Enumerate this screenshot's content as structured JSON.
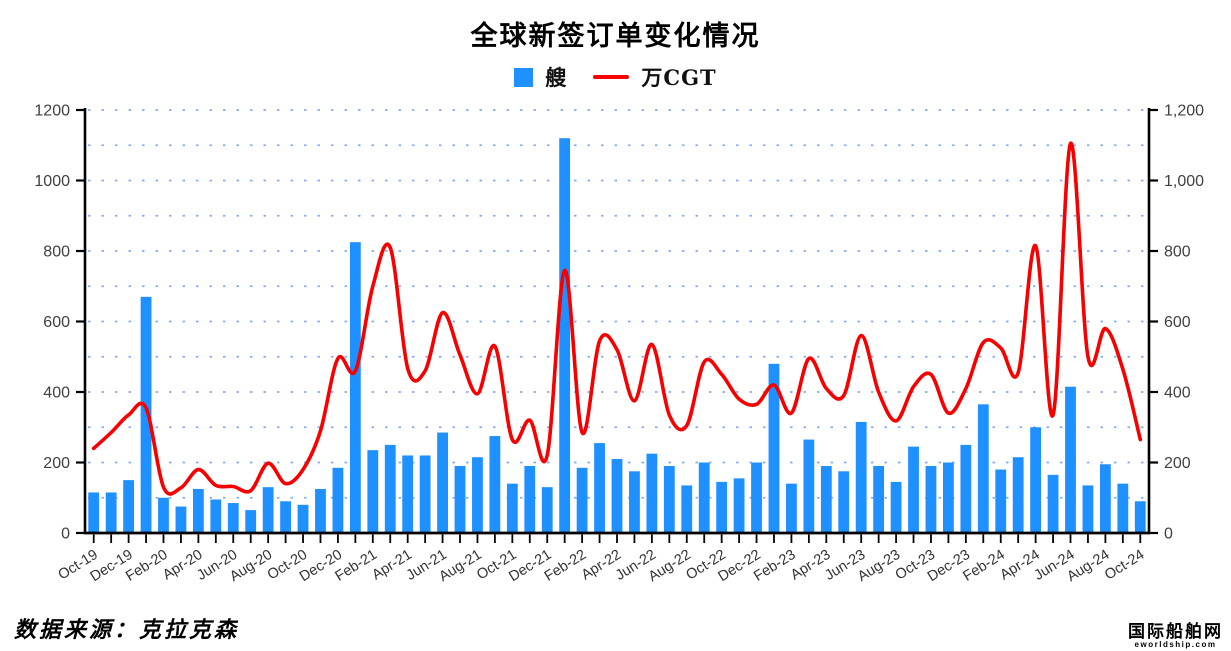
{
  "title": "全球新签订单变化情况",
  "source_note": "数据来源：克拉克森",
  "watermark": {
    "line1": "国际船舶网",
    "line2": "eworldship.com"
  },
  "colors": {
    "bar": "#1E90FF",
    "line": "#F70000",
    "grid": "#76A3F7",
    "axis": "#000000",
    "tick_text": "#404040"
  },
  "chart_data": {
    "type": "bar",
    "title": "全球新签订单变化情况",
    "xlabel": "",
    "ylabel": "",
    "ylim": [
      0,
      1200
    ],
    "grid": "horizontal dotted every 100",
    "legend_position": "top",
    "x_tick_label_every": 2,
    "left_axis_tick_labels": [
      "0",
      "200",
      "400",
      "600",
      "800",
      "1000",
      "1200"
    ],
    "right_axis_tick_labels": [
      "0",
      "200",
      "400",
      "600",
      "800",
      "1,000",
      "1,200"
    ],
    "y_tick_values": [
      0,
      200,
      400,
      600,
      800,
      1000,
      1200
    ],
    "categories": [
      "Oct-19",
      "Nov-19",
      "Dec-19",
      "Jan-20",
      "Feb-20",
      "Mar-20",
      "Apr-20",
      "May-20",
      "Jun-20",
      "Jul-20",
      "Aug-20",
      "Sep-20",
      "Oct-20",
      "Nov-20",
      "Dec-20",
      "Jan-21",
      "Feb-21",
      "Mar-21",
      "Apr-21",
      "May-21",
      "Jun-21",
      "Jul-21",
      "Aug-21",
      "Sep-21",
      "Oct-21",
      "Nov-21",
      "Dec-21",
      "Jan-22",
      "Feb-22",
      "Mar-22",
      "Apr-22",
      "May-22",
      "Jun-22",
      "Jul-22",
      "Aug-22",
      "Sep-22",
      "Oct-22",
      "Nov-22",
      "Dec-22",
      "Jan-23",
      "Feb-23",
      "Mar-23",
      "Apr-23",
      "May-23",
      "Jun-23",
      "Jul-23",
      "Aug-23",
      "Sep-23",
      "Oct-23",
      "Nov-23",
      "Dec-23",
      "Jan-24",
      "Feb-24",
      "Mar-24",
      "Apr-24",
      "May-24",
      "Jun-24",
      "Jul-24",
      "Aug-24",
      "Sep-24",
      "Oct-24"
    ],
    "series": [
      {
        "name": "艘",
        "type": "bar",
        "color": "#1E90FF",
        "values": [
          115,
          115,
          150,
          670,
          100,
          75,
          125,
          95,
          85,
          65,
          130,
          90,
          80,
          125,
          185,
          825,
          235,
          250,
          220,
          220,
          285,
          190,
          215,
          275,
          140,
          190,
          130,
          1120,
          185,
          255,
          210,
          175,
          225,
          190,
          135,
          200,
          145,
          155,
          200,
          480,
          140,
          265,
          190,
          175,
          315,
          190,
          145,
          245,
          190,
          200,
          250,
          365,
          180,
          215,
          300,
          165,
          415,
          135,
          195,
          140,
          90
        ]
      },
      {
        "name": "万CGT",
        "type": "line",
        "color": "#F70000",
        "values": [
          240,
          285,
          335,
          355,
          130,
          128,
          180,
          135,
          132,
          120,
          198,
          140,
          180,
          290,
          495,
          460,
          700,
          810,
          467,
          460,
          625,
          505,
          395,
          530,
          265,
          320,
          220,
          745,
          285,
          545,
          520,
          375,
          535,
          335,
          305,
          485,
          450,
          380,
          365,
          420,
          340,
          495,
          410,
          390,
          560,
          400,
          318,
          415,
          450,
          340,
          410,
          540,
          525,
          455,
          815,
          335,
          1105,
          500,
          580,
          465,
          265
        ]
      }
    ]
  }
}
